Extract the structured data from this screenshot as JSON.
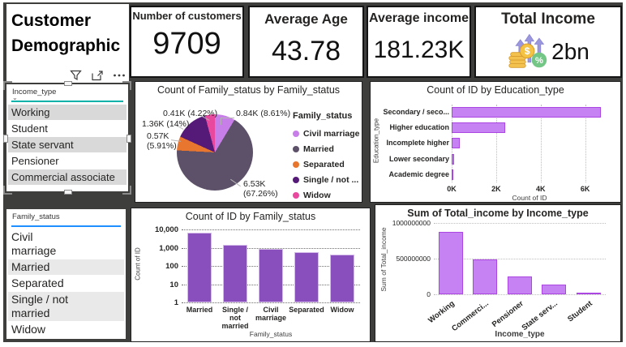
{
  "page": {
    "title": "Customer Demographic"
  },
  "visual_toolbar": {
    "icons": [
      "filter-icon",
      "focus-mode-icon",
      "more-options-icon"
    ]
  },
  "kpis": [
    {
      "label": "Number of customers",
      "value": "9709"
    },
    {
      "label": "Average Age",
      "value": "43.78"
    },
    {
      "label": "Average income",
      "value": "181.23K"
    },
    {
      "label": "Total Income",
      "value": "2bn",
      "icon": "coins-growth-icon"
    }
  ],
  "slicers": {
    "income_type": {
      "header": "Income_type",
      "items": [
        "Working",
        "Student",
        "State servant",
        "Pensioner",
        "Commercial associate"
      ],
      "first_row_shaded": true
    },
    "family_status": {
      "header": "Family_status",
      "items": [
        "Civil marriage",
        "Married",
        "Separated",
        "Single / not married",
        "Widow"
      ],
      "first_row_shaded": false
    }
  },
  "colors": {
    "dashboard_bg": "#3e3e3c",
    "light_purple_bar": "#c681f2",
    "light_purple_border": "#ab46e3",
    "dark_purple_bar": "#8950bd",
    "income_slicer_accent": "#00b2a9",
    "family_slicer_accent": "#1f8fff"
  },
  "chart_data": [
    {
      "type": "pie",
      "title": "Count of Family_status by Family_status",
      "legend_title": "Family_status",
      "legend_position": "right",
      "slices": [
        {
          "label": "Civil marriage",
          "value": 840,
          "pct": 8.61,
          "display": "0.84K (8.61%)",
          "color": "#c77ee8"
        },
        {
          "label": "Married",
          "value": 6530,
          "pct": 67.26,
          "display": "6.53K (67.26%)",
          "color": "#5c5168"
        },
        {
          "label": "Separated",
          "value": 570,
          "pct": 5.91,
          "display": "0.57K (5.91%)",
          "color": "#e8762e"
        },
        {
          "label": "Single / not ...",
          "value": 1360,
          "pct": 14,
          "display": "1.36K (14%)",
          "color": "#551a78"
        },
        {
          "label": "Widow",
          "value": 410,
          "pct": 4.22,
          "display": "0.41K (4.22%)",
          "color": "#e8489e"
        }
      ]
    },
    {
      "type": "bar",
      "orientation": "horizontal",
      "title": "Count of ID by Education_type",
      "categories": [
        "Secondary / seco...",
        "Higher education",
        "Incomplete higher",
        "Lower secondary",
        "Academic degree"
      ],
      "values": [
        6700,
        2400,
        350,
        110,
        30
      ],
      "xlabel": "Count of ID",
      "ylabel": "Education_type",
      "x_ticks": [
        "0K",
        "2K",
        "4K",
        "6K"
      ],
      "xlim": [
        0,
        7000
      ],
      "grid": "dotted-vertical"
    },
    {
      "type": "bar",
      "orientation": "vertical",
      "title": "Count of ID by Family_status",
      "categories": [
        "Married",
        "Single / not married",
        "Civil marriage",
        "Separated",
        "Widow"
      ],
      "values": [
        6530,
        1360,
        840,
        570,
        410
      ],
      "xlabel": "Family_status",
      "ylabel": "Count of ID",
      "y_scale": "log",
      "y_ticks": [
        "10,000",
        "1,000",
        "100",
        "10",
        "1"
      ],
      "ylim": [
        1,
        10000
      ],
      "grid": "dotted-horizontal"
    },
    {
      "type": "bar",
      "orientation": "vertical",
      "title": "Sum of Total_income by Income_type",
      "categories": [
        "Working",
        "Commerci...",
        "Pensioner",
        "State serv...",
        "Student"
      ],
      "values": [
        880000000,
        490000000,
        255000000,
        140000000,
        10000000
      ],
      "xlabel": "Income_type",
      "ylabel": "Sum of Total_income",
      "y_ticks": [
        "1000000000",
        "500000000",
        "0"
      ],
      "ylim": [
        0,
        1000000000
      ],
      "grid": "dotted-horizontal"
    }
  ]
}
